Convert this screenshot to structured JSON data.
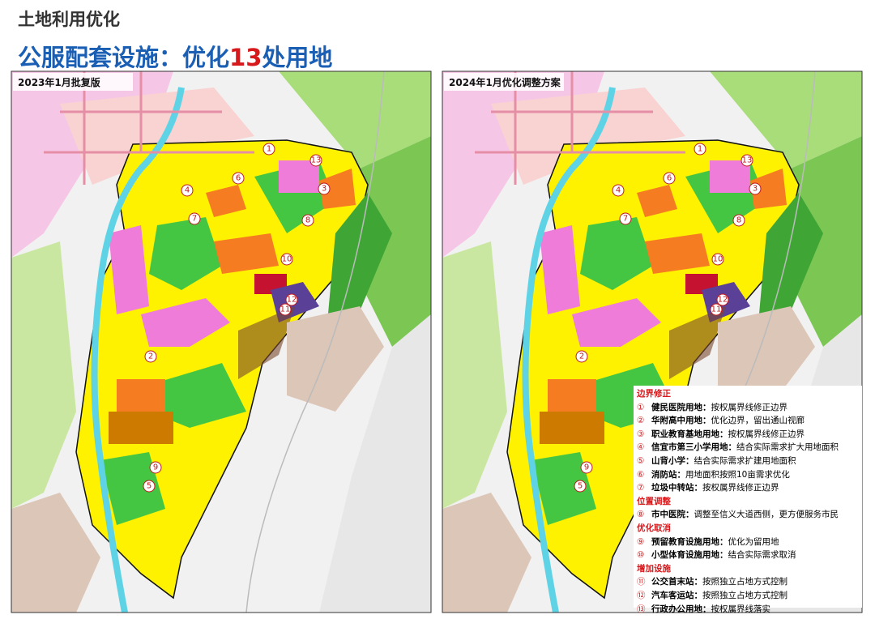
{
  "header": {
    "section": "土地利用优化",
    "title_parts": [
      "公服配套设施：优化",
      "13",
      "处用地"
    ]
  },
  "maps": [
    {
      "label": "2023年1月批复版",
      "markers": [
        "1",
        "13",
        "6",
        "3",
        "4",
        "7",
        "8",
        "10",
        "12",
        "11",
        "2",
        "9",
        "5"
      ]
    },
    {
      "label": "2024年1月优化调整方案",
      "markers": [
        "1",
        "13",
        "6",
        "3",
        "4",
        "7",
        "8",
        "10",
        "12",
        "11",
        "2",
        "9",
        "5"
      ]
    }
  ],
  "legend": {
    "sections": [
      {
        "title": "边界修正",
        "items": [
          {
            "num": "①",
            "name": "健民医院用地：",
            "desc": "按权属界线修正边界"
          },
          {
            "num": "②",
            "name": "华附高中用地：",
            "desc": "优化边界，留出通山视廊"
          },
          {
            "num": "③",
            "name": "职业教育基地用地：",
            "desc": "按权属界线修正边界"
          },
          {
            "num": "④",
            "name": "信宜市第三小学用地：",
            "desc": "结合实际需求扩大用地面积"
          },
          {
            "num": "⑤",
            "name": "山背小学：",
            "desc": "结合实际需求扩建用地面积"
          },
          {
            "num": "⑥",
            "name": "消防站：",
            "desc": "用地面积按照10亩需求优化"
          },
          {
            "num": "⑦",
            "name": "垃圾中转站：",
            "desc": "按权属界线修正边界"
          }
        ]
      },
      {
        "title": "位置调整",
        "items": [
          {
            "num": "⑧",
            "name": "市中医院：",
            "desc": "调整至信义大道西侧，更方便服务市民"
          }
        ]
      },
      {
        "title": "优化取消",
        "items": [
          {
            "num": "⑨",
            "name": "预留教育设施用地：",
            "desc": "优化为留用地"
          },
          {
            "num": "⑩",
            "name": "小型体育设施用地：",
            "desc": "结合实际需求取消"
          }
        ]
      },
      {
        "title": "增加设施",
        "items": [
          {
            "num": "⑪",
            "name": "公交首末站：",
            "desc": "按照独立占地方式控制"
          },
          {
            "num": "⑫",
            "name": "汽车客运站：",
            "desc": "按照独立占地方式控制"
          },
          {
            "num": "⑬",
            "name": "行政办公用地：",
            "desc": "按权属界线落实"
          }
        ]
      }
    ]
  }
}
